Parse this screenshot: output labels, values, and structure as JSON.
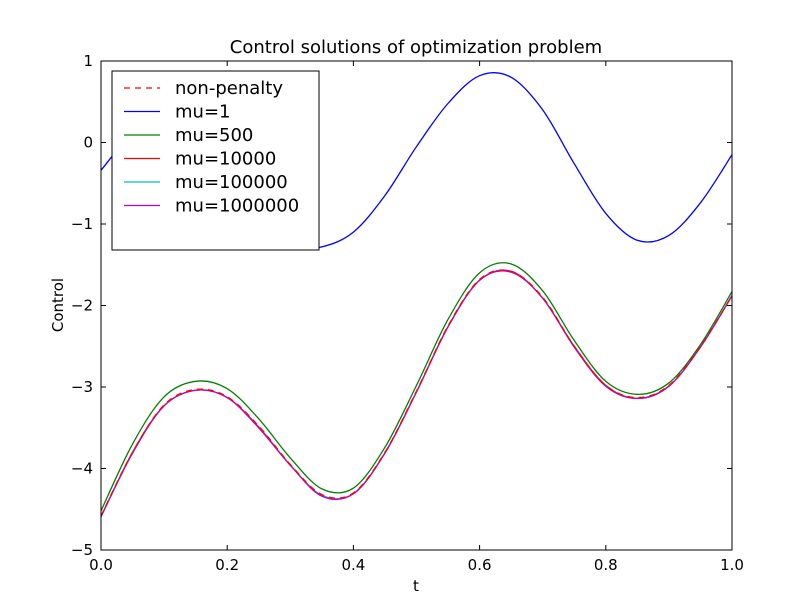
{
  "chart_data": {
    "type": "line",
    "title": "Control solutions of optimization problem",
    "xlabel": "t",
    "ylabel": "Control",
    "xlim": [
      0.0,
      1.0
    ],
    "ylim": [
      -5,
      1
    ],
    "x_ticks": [
      "0.0",
      "0.2",
      "0.4",
      "0.6",
      "0.8",
      "1.0"
    ],
    "y_ticks": [
      "−5",
      "−4",
      "−3",
      "−2",
      "−1",
      "0",
      "1"
    ],
    "grid": false,
    "legend_position": "top-left",
    "x": [
      0.0,
      0.05,
      0.1,
      0.15,
      0.2,
      0.25,
      0.3,
      0.35,
      0.4,
      0.45,
      0.5,
      0.55,
      0.6,
      0.65,
      0.7,
      0.75,
      0.8,
      0.85,
      0.9,
      0.95,
      1.0
    ],
    "series": [
      {
        "name": "non-penalty",
        "color": "#ff0000",
        "style": "dashed",
        "values": [
          -4.58,
          -3.8,
          -3.22,
          -3.03,
          -3.12,
          -3.48,
          -3.95,
          -4.32,
          -4.3,
          -3.8,
          -3.05,
          -2.25,
          -1.68,
          -1.58,
          -1.9,
          -2.5,
          -2.98,
          -3.13,
          -2.98,
          -2.5,
          -1.88
        ]
      },
      {
        "name": "mu=1",
        "color": "#0000ff",
        "style": "solid",
        "values": [
          -0.34,
          0.08,
          0.04,
          -0.29,
          -0.8,
          -1.15,
          -1.29,
          -1.28,
          -1.1,
          -0.65,
          -0.05,
          0.48,
          0.82,
          0.8,
          0.4,
          -0.26,
          -0.87,
          -1.2,
          -1.14,
          -0.74,
          -0.15
        ]
      },
      {
        "name": "mu=500",
        "color": "#008000",
        "style": "solid",
        "values": [
          -4.52,
          -3.7,
          -3.12,
          -2.93,
          -3.02,
          -3.39,
          -3.87,
          -4.25,
          -4.24,
          -3.74,
          -2.98,
          -2.17,
          -1.6,
          -1.49,
          -1.82,
          -2.43,
          -2.93,
          -3.09,
          -2.95,
          -2.48,
          -1.83
        ]
      },
      {
        "name": "mu=10000",
        "color": "#ff0000",
        "style": "solid",
        "values": [
          -4.59,
          -3.8,
          -3.23,
          -3.04,
          -3.13,
          -3.49,
          -3.96,
          -4.33,
          -4.31,
          -3.81,
          -3.06,
          -2.26,
          -1.69,
          -1.58,
          -1.91,
          -2.5,
          -2.98,
          -3.14,
          -2.99,
          -2.51,
          -1.88
        ]
      },
      {
        "name": "mu=100000",
        "color": "#00bfbf",
        "style": "solid",
        "values": [
          -4.59,
          -3.81,
          -3.23,
          -3.04,
          -3.13,
          -3.5,
          -3.96,
          -4.33,
          -4.31,
          -3.81,
          -3.06,
          -2.26,
          -1.69,
          -1.59,
          -1.91,
          -2.51,
          -2.99,
          -3.14,
          -2.99,
          -2.51,
          -1.88
        ]
      },
      {
        "name": "mu=1000000",
        "color": "#bf00bf",
        "style": "solid",
        "values": [
          -4.59,
          -3.81,
          -3.23,
          -3.04,
          -3.13,
          -3.5,
          -3.96,
          -4.34,
          -4.31,
          -3.81,
          -3.06,
          -2.26,
          -1.69,
          -1.59,
          -1.91,
          -2.51,
          -2.99,
          -3.14,
          -2.99,
          -2.51,
          -1.88
        ]
      }
    ]
  }
}
